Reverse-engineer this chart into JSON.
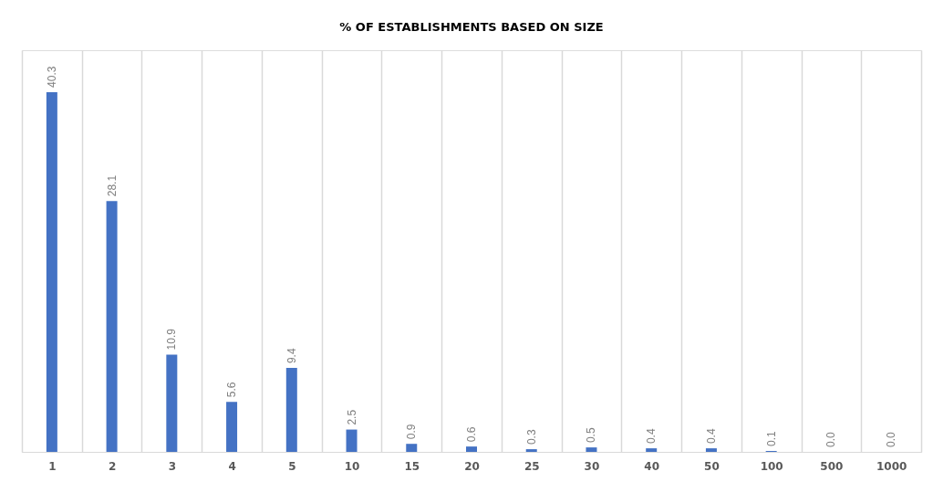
{
  "chart_data": {
    "type": "bar",
    "title": "% OF ESTABLISHMENTS BASED ON SIZE",
    "categories": [
      "1",
      "2",
      "3",
      "4",
      "5",
      "10",
      "15",
      "20",
      "25",
      "30",
      "40",
      "50",
      "100",
      "500",
      "1000"
    ],
    "values": [
      40.3,
      28.1,
      10.9,
      5.6,
      9.4,
      2.5,
      0.9,
      0.6,
      0.3,
      0.5,
      0.4,
      0.4,
      0.1,
      0.0,
      0.0
    ],
    "value_labels": [
      "40.3",
      "28.1",
      "10.9",
      "5.6",
      "9.4",
      "2.5",
      "0.9",
      "0.6",
      "0.3",
      "0.5",
      "0.4",
      "0.4",
      "0.1",
      "0.0",
      "0.0"
    ],
    "color": "#4472c4",
    "ylim": [
      0,
      45
    ],
    "grid": "x",
    "tick_labels": "x"
  }
}
